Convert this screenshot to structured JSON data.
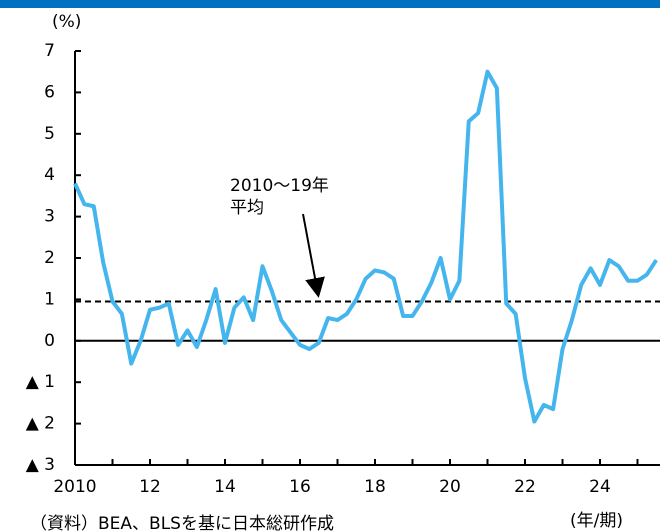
{
  "chart_data": {
    "type": "line",
    "y_unit": "(%)",
    "x_unit": "(年/期)",
    "source": "（資料）BEA、BLSを基に日本総研作成",
    "annotation_lines": [
      "2010～19年",
      "平均"
    ],
    "reference_line": 0.95,
    "x": [
      2010.0,
      2010.25,
      2010.5,
      2010.75,
      2011.0,
      2011.25,
      2011.5,
      2011.75,
      2012.0,
      2012.25,
      2012.5,
      2012.75,
      2013.0,
      2013.25,
      2013.5,
      2013.75,
      2014.0,
      2014.25,
      2014.5,
      2014.75,
      2015.0,
      2015.25,
      2015.5,
      2015.75,
      2016.0,
      2016.25,
      2016.5,
      2016.75,
      2017.0,
      2017.25,
      2017.5,
      2017.75,
      2018.0,
      2018.25,
      2018.5,
      2018.75,
      2019.0,
      2019.25,
      2019.5,
      2019.75,
      2020.0,
      2020.25,
      2020.5,
      2020.75,
      2021.0,
      2021.25,
      2021.5,
      2021.75,
      2022.0,
      2022.25,
      2022.5,
      2022.75,
      2023.0,
      2023.25,
      2023.5,
      2023.75,
      2024.0,
      2024.25,
      2024.5,
      2024.75,
      2025.0,
      2025.25,
      2025.5
    ],
    "series": [
      {
        "color": "#45b5ee",
        "values": [
          3.8,
          3.3,
          3.25,
          1.9,
          0.95,
          0.65,
          -0.55,
          0.0,
          0.75,
          0.8,
          0.9,
          -0.1,
          0.25,
          -0.15,
          0.5,
          1.25,
          -0.05,
          0.8,
          1.05,
          0.5,
          1.8,
          1.2,
          0.5,
          0.2,
          -0.1,
          -0.2,
          -0.05,
          0.55,
          0.5,
          0.65,
          1.0,
          1.5,
          1.7,
          1.65,
          1.5,
          0.6,
          0.6,
          0.95,
          1.4,
          2.0,
          1.0,
          1.45,
          5.3,
          5.5,
          6.5,
          6.1,
          0.9,
          0.65,
          -0.9,
          -1.95,
          -1.55,
          -1.65,
          -0.2,
          0.5,
          1.35,
          1.75,
          1.35,
          1.95,
          1.8,
          1.45,
          1.45,
          1.6,
          1.95
        ]
      }
    ],
    "xlim": [
      2010,
      2025.6
    ],
    "xticks": [
      2010,
      {
        "value": 2012,
        "label": "12"
      },
      {
        "value": 2014,
        "label": "14"
      },
      {
        "value": 2016,
        "label": "16"
      },
      {
        "value": 2018,
        "label": "18"
      },
      {
        "value": 2020,
        "label": "20"
      },
      {
        "value": 2022,
        "label": "22"
      },
      {
        "value": 2024,
        "label": "24"
      }
    ],
    "xminor_ticks": [
      2011,
      2013,
      2015,
      2017,
      2019,
      2021,
      2023,
      2025
    ],
    "ylim": [
      -3,
      7
    ],
    "yticks": [
      {
        "value": -3,
        "label": "▲ 3"
      },
      {
        "value": -2,
        "label": "▲ 2"
      },
      {
        "value": -1,
        "label": "▲ 1"
      },
      0,
      1,
      2,
      3,
      4,
      5,
      6,
      7
    ]
  }
}
